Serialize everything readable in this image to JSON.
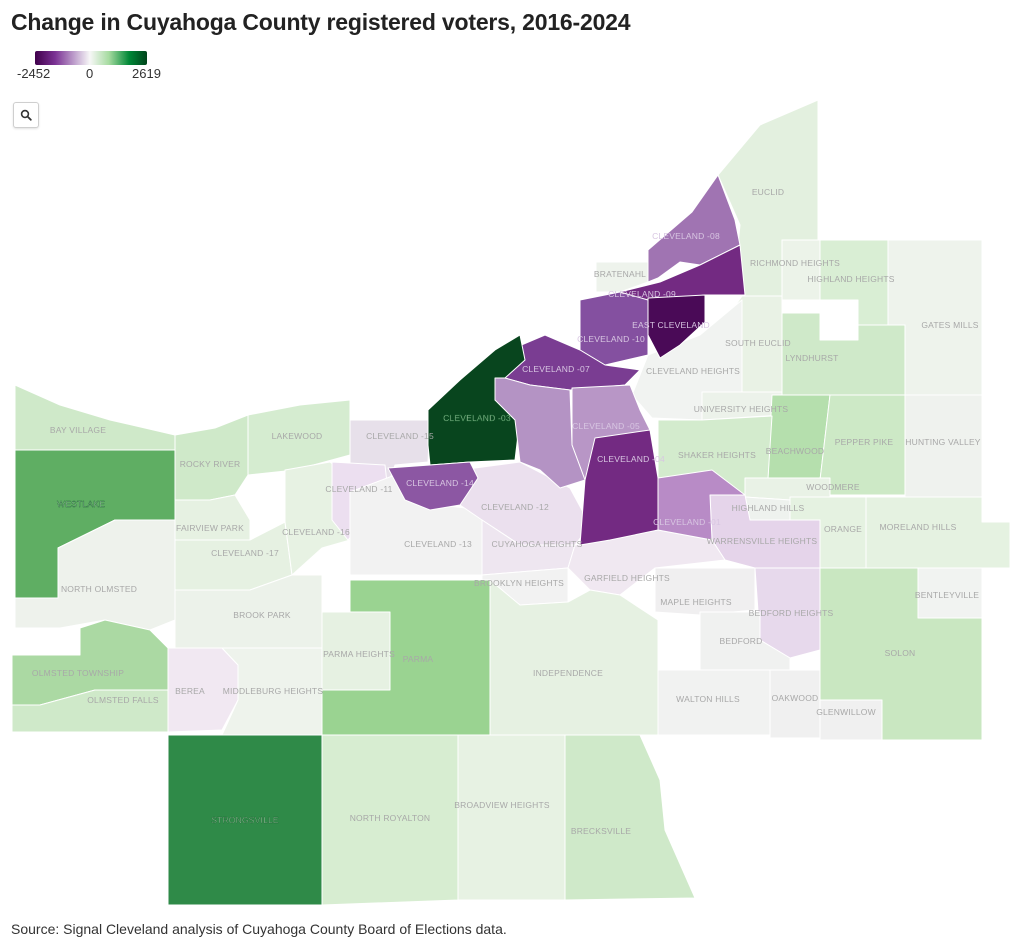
{
  "title": "Change in Cuyahoga County registered voters, 2016-2024",
  "legend": {
    "min_label": "-2452",
    "mid_label": "0",
    "max_label": "2619",
    "min": -2452,
    "mid": 0,
    "max": 2619,
    "colors": [
      "#40004b",
      "#7b3294",
      "#c2a5cf",
      "#f7f7f7",
      "#a6dba0",
      "#008837",
      "#00441b"
    ]
  },
  "zoom_button": {
    "icon": "search-icon"
  },
  "source": "Source: Signal Cleveland analysis of Cuyahoga County Board of Elections data.",
  "map": {
    "labels": [
      "EUCLID",
      "RICHMOND HEIGHTS",
      "HIGHLAND HEIGHTS",
      "GATES MILLS",
      "BRATENAHL",
      "SOUTH EUCLID",
      "LYNDHURST",
      "CLEVELAND HEIGHTS",
      "UNIVERSITY HEIGHTS",
      "PEPPER PIKE",
      "HUNTING VALLEY",
      "SHAKER HEIGHTS",
      "BEACHWOOD",
      "WOODMERE",
      "HIGHLAND HILLS",
      "ORANGE",
      "MORELAND HILLS",
      "WARRENSVILLE HEIGHTS",
      "BENTLEYVILLE",
      "BAY VILLAGE",
      "LAKEWOOD",
      "ROCKY RIVER",
      "WESTLAKE",
      "FAIRVIEW PARK",
      "CLEVELAND -17",
      "CLEVELAND -16",
      "CLEVELAND -15",
      "CLEVELAND -11",
      "CLEVELAND -13",
      "CLEVELAND -12",
      "CUYAHOGA HEIGHTS",
      "NORTH OLMSTED",
      "BROOK PARK",
      "BROOKLYN HEIGHTS",
      "GARFIELD HEIGHTS",
      "MAPLE HEIGHTS",
      "BEDFORD HEIGHTS",
      "BEDFORD",
      "SOLON",
      "PARMA HEIGHTS",
      "PARMA",
      "OLMSTED TOWNSHIP",
      "OLMSTED FALLS",
      "BEREA",
      "MIDDLEBURG HEIGHTS",
      "INDEPENDENCE",
      "WALTON HILLS",
      "OAKWOOD",
      "GLENWILLOW",
      "STRONGSVILLE",
      "NORTH ROYALTON",
      "BROADVIEW HEIGHTS",
      "BRECKSVILLE",
      "CLEVELAND -08",
      "CLEVELAND -09",
      "EAST CLEVELAND",
      "CLEVELAND -10",
      "CLEVELAND -07",
      "CLEVELAND -03",
      "CLEVELAND -05",
      "CLEVELAND -04",
      "CLEVELAND -14",
      "CLEVELAND -01"
    ]
  }
}
